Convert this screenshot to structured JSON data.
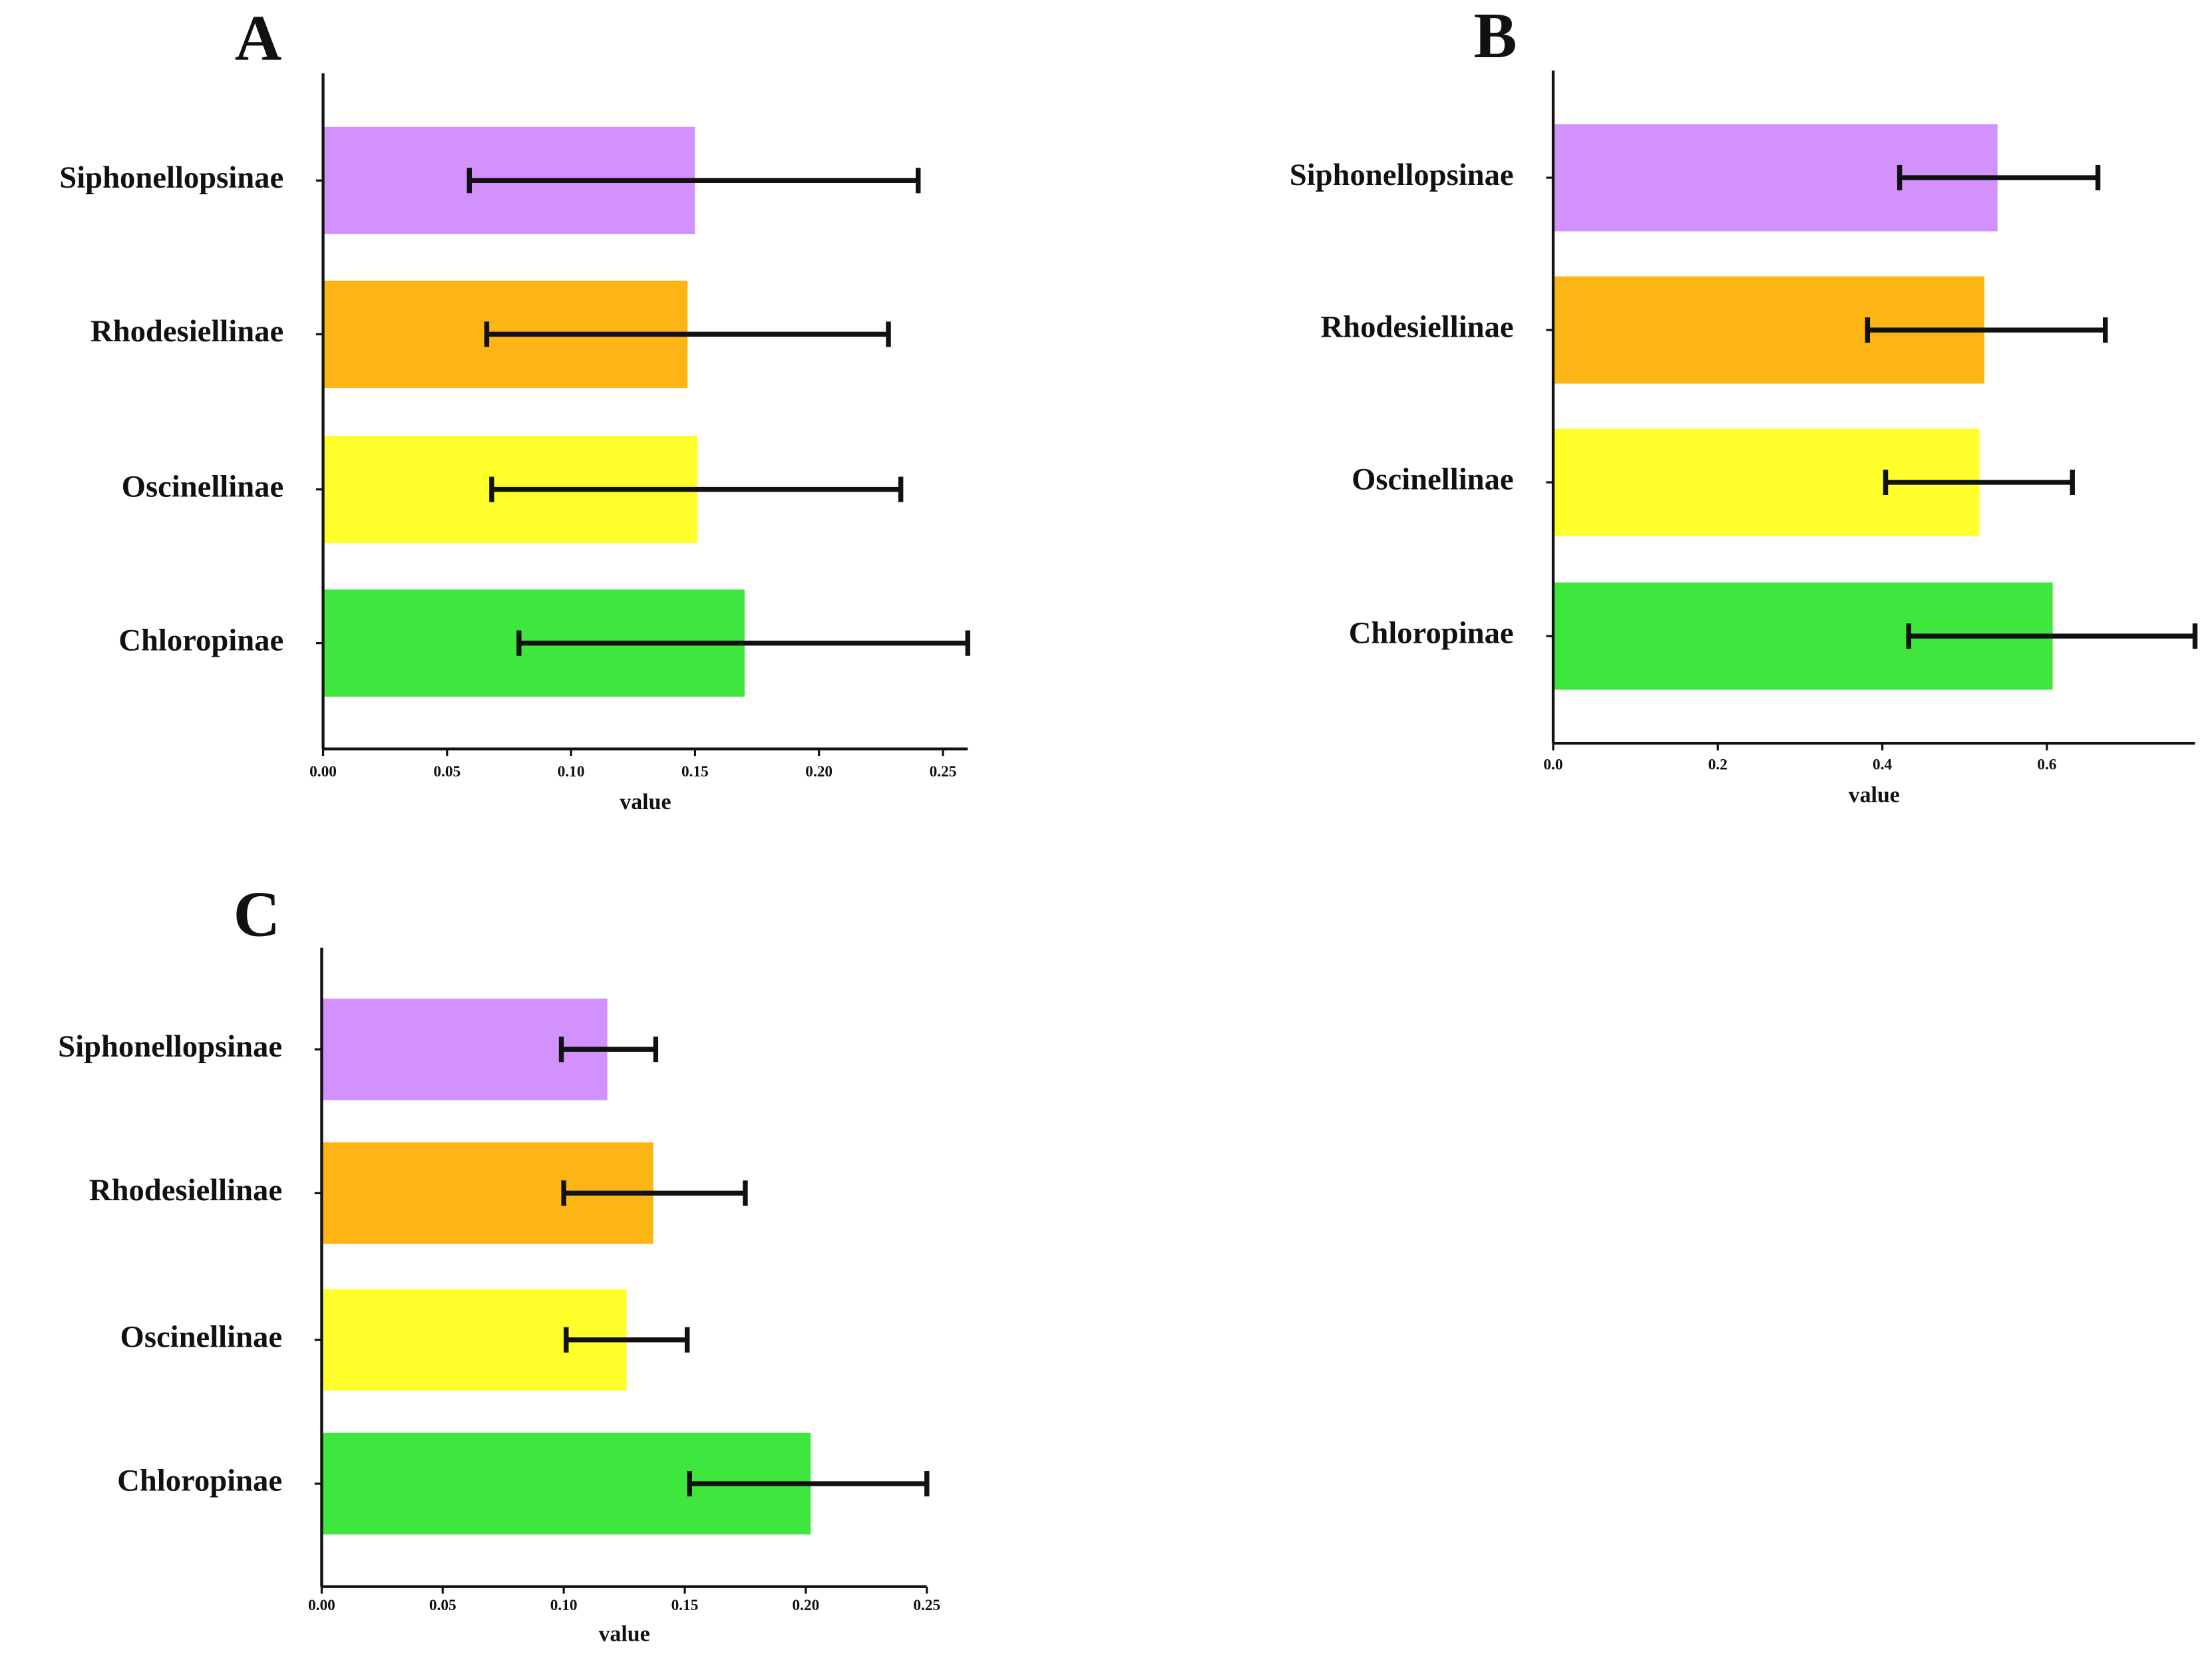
{
  "chart_data": [
    {
      "type": "bar",
      "orientation": "horizontal",
      "panel_label": "A",
      "x_label": "value",
      "categories": [
        "Siphonellopsinae",
        "Rhodesiellinae",
        "Oscinellinae",
        "Chloropinae"
      ],
      "colors": [
        "#d291fc",
        "#fdb515",
        "#ffff2b",
        "#3ee63e"
      ],
      "values": [
        0.15,
        0.147,
        0.151,
        0.17
      ],
      "lower": [
        0.059,
        0.066,
        0.068,
        0.079
      ],
      "upper": [
        0.24,
        0.228,
        0.233,
        0.26
      ],
      "xlim": [
        0,
        0.26
      ],
      "xticks": [
        {
          "value": 0,
          "label": "0.00"
        },
        {
          "value": 0.05,
          "label": "0.05"
        },
        {
          "value": 0.1,
          "label": "0.10"
        },
        {
          "value": 0.15,
          "label": "0.15"
        },
        {
          "value": 0.2,
          "label": "0.20"
        },
        {
          "value": 0.25,
          "label": "0.25"
        }
      ]
    },
    {
      "type": "bar",
      "orientation": "horizontal",
      "panel_label": "B",
      "x_label": "value",
      "categories": [
        "Siphonellopsinae",
        "Rhodesiellinae",
        "Oscinellinae",
        "Chloropinae"
      ],
      "colors": [
        "#d291fc",
        "#fdb515",
        "#ffff2b",
        "#3ee63e"
      ],
      "values": [
        0.54,
        0.524,
        0.518,
        0.607
      ],
      "lower": [
        0.421,
        0.382,
        0.404,
        0.432
      ],
      "upper": [
        0.662,
        0.671,
        0.631,
        0.78
      ],
      "xlim": [
        0,
        0.78
      ],
      "xticks": [
        {
          "value": 0,
          "label": "0.0"
        },
        {
          "value": 0.2,
          "label": "0.2"
        },
        {
          "value": 0.4,
          "label": "0.4"
        },
        {
          "value": 0.6,
          "label": "0.6"
        }
      ]
    },
    {
      "type": "bar",
      "orientation": "horizontal",
      "panel_label": "C",
      "x_label": "value",
      "categories": [
        "Siphonellopsinae",
        "Rhodesiellinae",
        "Oscinellinae",
        "Chloropinae"
      ],
      "colors": [
        "#d291fc",
        "#fdb515",
        "#ffff2b",
        "#3ee63e"
      ],
      "values": [
        0.118,
        0.137,
        0.126,
        0.202
      ],
      "lower": [
        0.099,
        0.1,
        0.101,
        0.152
      ],
      "upper": [
        0.138,
        0.175,
        0.151,
        0.25
      ],
      "xlim": [
        0,
        0.25
      ],
      "xticks": [
        {
          "value": 0,
          "label": "0.00"
        },
        {
          "value": 0.05,
          "label": "0.05"
        },
        {
          "value": 0.1,
          "label": "0.10"
        },
        {
          "value": 0.15,
          "label": "0.15"
        },
        {
          "value": 0.2,
          "label": "0.20"
        },
        {
          "value": 0.25,
          "label": "0.25"
        }
      ]
    }
  ]
}
